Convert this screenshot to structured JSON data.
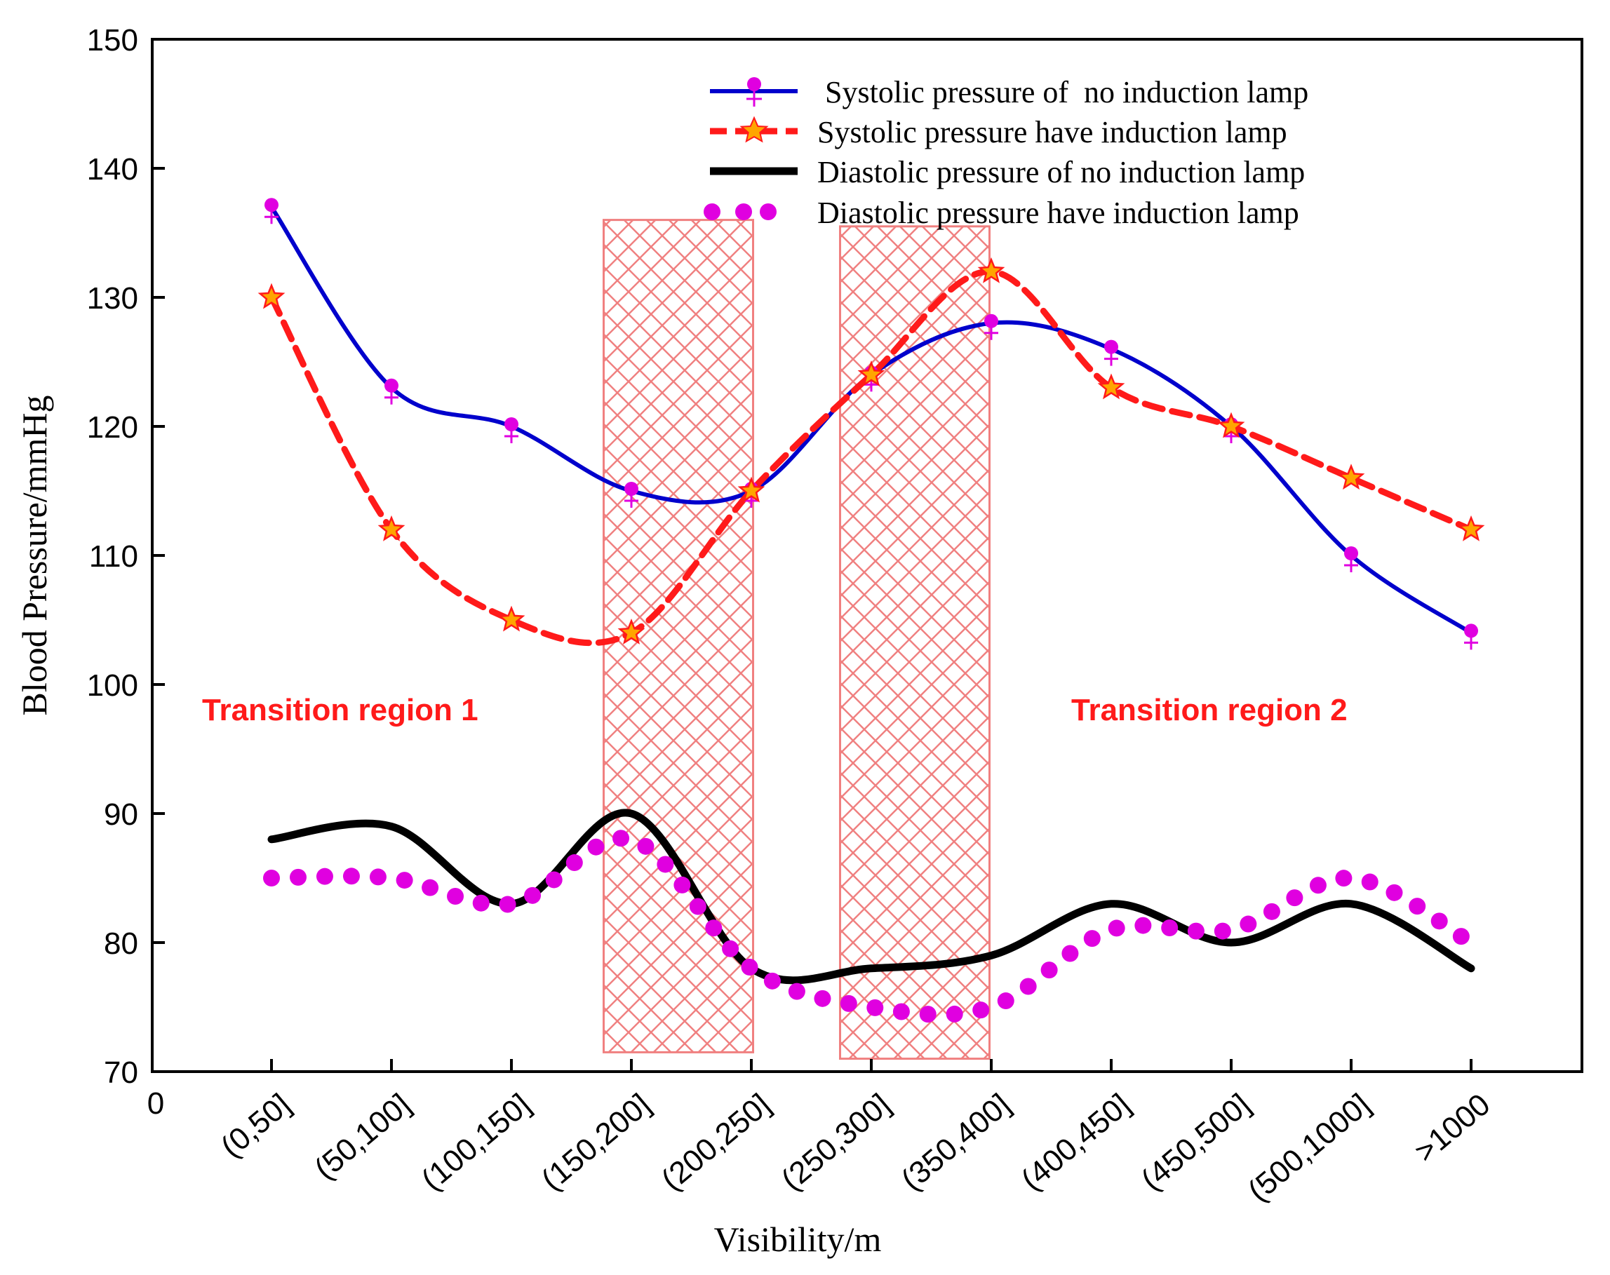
{
  "chart_data": {
    "type": "line",
    "xlabel": "Visibility/m",
    "ylabel": "Blood Pressure/mmHg",
    "ylim": [
      70,
      150
    ],
    "yticks": [
      70,
      80,
      90,
      100,
      110,
      120,
      130,
      140,
      150
    ],
    "x_origin_label": "0",
    "categories": [
      "(0,50]",
      "(50,100]",
      "(100,150]",
      "(150,200]",
      "(200,250]",
      "(250,300]",
      "(350,400]",
      "(400,450]",
      "(450,500]",
      "(500,1000]",
      ">1000"
    ],
    "series": [
      {
        "name": " Systolic pressure of  no induction lamp",
        "color": "#0000cc",
        "marker_color": "#e000e0",
        "values": [
          137,
          123,
          120,
          115,
          115,
          124,
          128,
          126,
          120,
          110,
          104
        ]
      },
      {
        "name": "Systolic pressure have induction lamp",
        "color": "#ff1a1a",
        "marker_color": "#ffa500",
        "values": [
          130,
          112,
          105,
          104,
          115,
          124,
          132,
          123,
          120,
          116,
          112
        ]
      },
      {
        "name": "Diastolic pressure of no induction lamp",
        "color": "#000000",
        "values": [
          88,
          89,
          83,
          90,
          78,
          78,
          79,
          83,
          80,
          83,
          78
        ]
      },
      {
        "name": "Diastolic pressure have induction lamp",
        "color": "#e000e0",
        "values": [
          85,
          85,
          83,
          88,
          78,
          75,
          75,
          81,
          81,
          85,
          80
        ]
      }
    ],
    "annotations": [
      {
        "text": "Transition region 1",
        "color": "#ff1a1a"
      },
      {
        "text": "Transition region 2",
        "color": "#ff1a1a"
      }
    ],
    "shaded_regions": [
      {
        "x_range": [
          "(150,200]",
          "(200,250]"
        ],
        "y_range": [
          71.5,
          136
        ],
        "color": "#f08080"
      },
      {
        "x_range": [
          "(250,300]",
          "(350,400]"
        ],
        "y_range": [
          71,
          135.5
        ],
        "color": "#f08080"
      }
    ]
  }
}
